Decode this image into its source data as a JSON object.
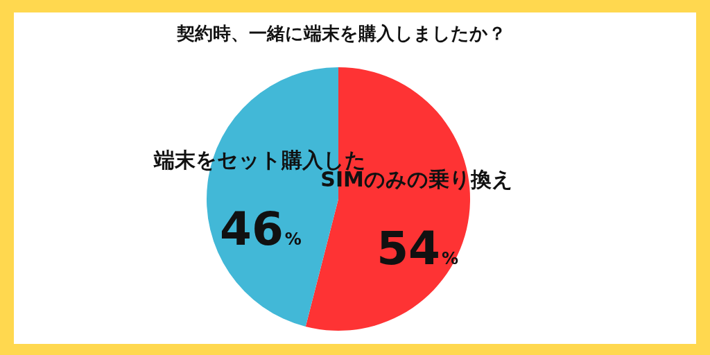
{
  "chart_data": {
    "type": "pie",
    "title": "契約時、一緒に端末を購入しましたか？",
    "categories": [
      "SIMのみの乗り換え",
      "端末をセット購入した"
    ],
    "values": [
      54,
      46
    ],
    "colors": [
      "#fe3334",
      "#42b8d7"
    ],
    "value_labels": [
      "54%",
      "46%"
    ],
    "legend": false
  }
}
